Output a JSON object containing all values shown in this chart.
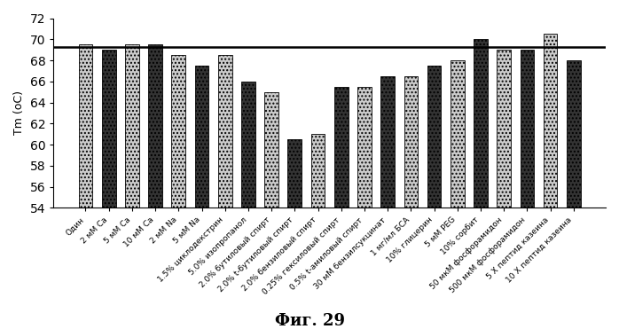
{
  "categories": [
    "Один",
    "2 мМ Ca",
    "5 мМ Ca",
    "10 мМ Ca",
    "2 мМ Na",
    "5 мМ Na",
    "1.5% циклодекстрин",
    "5.0% изопропанол",
    "2.0% бутиловый спирт",
    "2.0% t-бутиловый спирт",
    "2.0% бензиловый спирт",
    "0.25% гексиловый спирт",
    "0.5% t-амиловый спирт",
    "30 мМ бензилсукцинат",
    "1 мг/мл БСА",
    "10% глицерин",
    "5 мМ PEG",
    "10% сорбит",
    "50 мкМ фосфорамидон",
    "500 мкМ фосфорамидон",
    "5 X пептид казеина",
    "10 X пептид казеина"
  ],
  "values": [
    69.5,
    69.0,
    69.5,
    69.5,
    68.5,
    67.5,
    68.5,
    66.0,
    65.0,
    60.5,
    61.0,
    65.5,
    65.5,
    66.5,
    66.5,
    67.5,
    68.0,
    70.0,
    69.0,
    69.0,
    70.5,
    68.0
  ],
  "ylabel": "Tm (oC)",
  "title": "Фиг. 29",
  "ylim_min": 54,
  "ylim_max": 72,
  "yticks": [
    54,
    56,
    58,
    60,
    62,
    64,
    66,
    68,
    70,
    72
  ],
  "reference_line": 69.3,
  "bar_width": 0.6,
  "xlabel_fontsize": 6.5,
  "ylabel_fontsize": 9,
  "title_fontsize": 13
}
